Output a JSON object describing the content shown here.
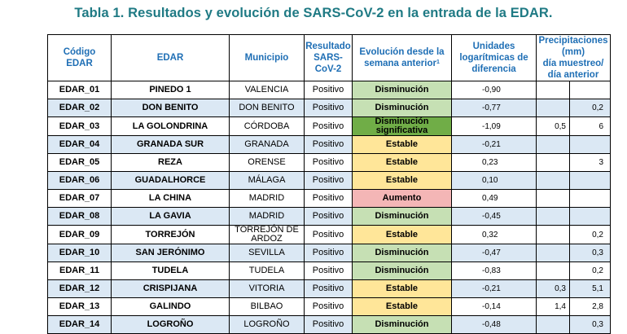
{
  "title": "Tabla 1. Resultados y evolución de SARS-CoV-2 en la entrada de la EDAR.",
  "headers": {
    "code_line1": "Código",
    "code_line2": "EDAR",
    "edar": "EDAR",
    "municipio": "Municipio",
    "resultado_line1": "Resultado",
    "resultado_line2": "SARS-",
    "resultado_line3": "CoV-2",
    "evolucion_line1": "Evolución desde la",
    "evolucion_line2": "semana anterior",
    "evolucion_sup": "1",
    "unidades_line1": "Unidades",
    "unidades_line2": "logarítmicas de",
    "unidades_line3": "diferencia",
    "precip_line1": "Precipitaciones",
    "precip_line2": "(mm)",
    "precip_line3": "día muestreo/",
    "precip_line4": "día anterior"
  },
  "rows": [
    {
      "code": "EDAR_01",
      "edar": "PINEDO 1",
      "municipio": "VALENCIA",
      "resultado": "Positivo",
      "evolucion": "Disminución",
      "evo_class": "dis",
      "unidades": "-0,90",
      "p1": "",
      "p2": ""
    },
    {
      "code": "EDAR_02",
      "edar": "DON BENITO",
      "municipio": "DON BENITO",
      "resultado": "Positivo",
      "evolucion": "Disminución",
      "evo_class": "dis",
      "unidades": "-0,77",
      "p1": "",
      "p2": "0,2"
    },
    {
      "code": "EDAR_03",
      "edar": "LA GOLONDRINA",
      "municipio": "CÓRDOBA",
      "resultado": "Positivo",
      "evolucion": "Disminución significativa",
      "evo_class": "dsig",
      "unidades": "-1,09",
      "p1": "0,5",
      "p2": "6"
    },
    {
      "code": "EDAR_04",
      "edar": "GRANADA SUR",
      "municipio": "GRANADA",
      "resultado": "Positivo",
      "evolucion": "Estable",
      "evo_class": "est",
      "unidades": "-0,21",
      "p1": "",
      "p2": ""
    },
    {
      "code": "EDAR_05",
      "edar": "REZA",
      "municipio": "ORENSE",
      "resultado": "Positivo",
      "evolucion": "Estable",
      "evo_class": "est",
      "unidades": "0,23",
      "p1": "",
      "p2": "3"
    },
    {
      "code": "EDAR_06",
      "edar": "GUADALHORCE",
      "municipio": "MÁLAGA",
      "resultado": "Positivo",
      "evolucion": "Estable",
      "evo_class": "est",
      "unidades": "0,10",
      "p1": "",
      "p2": ""
    },
    {
      "code": "EDAR_07",
      "edar": "LA CHINA",
      "municipio": "MADRID",
      "resultado": "Positivo",
      "evolucion": "Aumento",
      "evo_class": "aum",
      "unidades": "0,49",
      "p1": "",
      "p2": ""
    },
    {
      "code": "EDAR_08",
      "edar": "LA GAVIA",
      "municipio": "MADRID",
      "resultado": "Positivo",
      "evolucion": "Disminución",
      "evo_class": "dis",
      "unidades": "-0,45",
      "p1": "",
      "p2": ""
    },
    {
      "code": "EDAR_09",
      "edar": "TORREJÓN",
      "municipio": "TORREJÓN DE ARDOZ",
      "resultado": "Positivo",
      "evolucion": "Estable",
      "evo_class": "est",
      "unidades": "0,32",
      "p1": "",
      "p2": "0,2"
    },
    {
      "code": "EDAR_10",
      "edar": "SAN JERÓNIMO",
      "municipio": "SEVILLA",
      "resultado": "Positivo",
      "evolucion": "Disminución",
      "evo_class": "dis",
      "unidades": "-0,47",
      "p1": "",
      "p2": "0,3"
    },
    {
      "code": "EDAR_11",
      "edar": "TUDELA",
      "municipio": "TUDELA",
      "resultado": "Positivo",
      "evolucion": "Disminución",
      "evo_class": "dis",
      "unidades": "-0,83",
      "p1": "",
      "p2": "0,2"
    },
    {
      "code": "EDAR_12",
      "edar": "CRISPIJANA",
      "municipio": "VITORIA",
      "resultado": "Positivo",
      "evolucion": "Estable",
      "evo_class": "est",
      "unidades": "-0,21",
      "p1": "0,3",
      "p2": "5,1"
    },
    {
      "code": "EDAR_13",
      "edar": "GALINDO",
      "municipio": "BILBAO",
      "resultado": "Positivo",
      "evolucion": "Estable",
      "evo_class": "est",
      "unidades": "-0,14",
      "p1": "1,4",
      "p2": "2,8"
    },
    {
      "code": "EDAR_14",
      "edar": "LOGROÑO",
      "municipio": "LOGROÑO",
      "resultado": "Positivo",
      "evolucion": "Disminución",
      "evo_class": "dis",
      "unidades": "-0,48",
      "p1": "",
      "p2": "0,3"
    }
  ]
}
